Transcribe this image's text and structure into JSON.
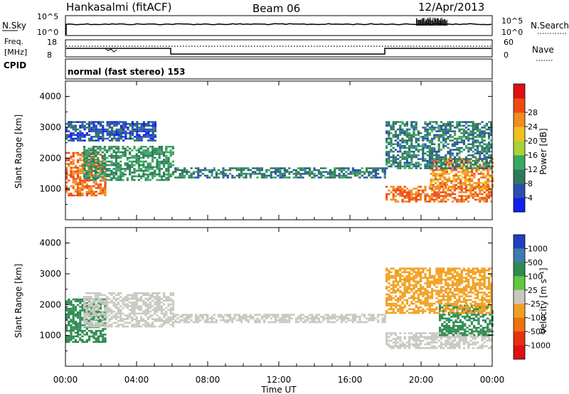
{
  "header": {
    "station": "Hankasalmi (fitACF)",
    "beam": "Beam 06",
    "date": "12/Apr/2013"
  },
  "top_panel": {
    "left_label": "N.Sky",
    "left_ticks": [
      "10^5",
      "10^0"
    ],
    "right_label": "N.Search",
    "right_ticks": [
      "10^5",
      "10^0"
    ]
  },
  "freq_panel": {
    "left_label_line1": "Freq.",
    "left_label_line2": "[MHz]",
    "left_ticks": [
      "18",
      "8"
    ],
    "right_label": "Nave",
    "right_ticks": [
      "60",
      "0"
    ],
    "cpid_label": "CPID"
  },
  "mode_text": "normal (fast stereo) 153",
  "colors": {
    "power": [
      "#1020f0",
      "#2a4fb0",
      "#2f7a5a",
      "#3aa860",
      "#a8d238",
      "#f0c020",
      "#f08c20",
      "#f04a14",
      "#e01010"
    ],
    "velocity": [
      "#2040c0",
      "#3c7cb0",
      "#2e8a50",
      "#60c840",
      "#c8c8c0",
      "#f0a020",
      "#f07010",
      "#e83010",
      "#e01010"
    ]
  },
  "chart_data": [
    {
      "type": "heatmap",
      "name": "power",
      "xlabel": "",
      "ylabel": "Slant Range [km]",
      "xlim": [
        "00:00",
        "24:00"
      ],
      "ylim": [
        0,
        4500
      ],
      "yticks": [
        "1000",
        "2000",
        "3000",
        "4000"
      ],
      "colorbar_label": "Power [dB]",
      "colorbar_ticks": [
        "4",
        "8",
        "12",
        "16",
        "20",
        "24",
        "28"
      ],
      "features": [
        {
          "desc": "strong band",
          "t_start": 0.0,
          "t_end": 2.3,
          "range_low": 800,
          "range_high": 2200,
          "value": 28
        },
        {
          "desc": "descending band",
          "t_start": 1.0,
          "t_end": 6.0,
          "range_low": 1300,
          "range_high": 2400,
          "value": 12
        },
        {
          "desc": "weak echoes",
          "t_start": 0.0,
          "t_end": 5.0,
          "range_low": 2600,
          "range_high": 3200,
          "value": 6
        },
        {
          "desc": "mid-range band",
          "t_start": 6.0,
          "t_end": 18.0,
          "range_low": 1400,
          "range_high": 1700,
          "value": 10
        },
        {
          "desc": "strong lower band",
          "t_start": 18.0,
          "t_end": 24.0,
          "range_low": 600,
          "range_high": 1100,
          "value": 28
        },
        {
          "desc": "strong upper band",
          "t_start": 20.5,
          "t_end": 24.0,
          "range_low": 1000,
          "range_high": 2000,
          "value": 26
        },
        {
          "desc": "scattered echoes",
          "t_start": 18.0,
          "t_end": 24.0,
          "range_low": 1700,
          "range_high": 3200,
          "value": 10
        }
      ]
    },
    {
      "type": "heatmap",
      "name": "velocity",
      "xlabel": "Time UT",
      "ylabel": "Slant Range [km]",
      "xlim": [
        "00:00",
        "24:00"
      ],
      "ylim": [
        0,
        4500
      ],
      "xticks": [
        "00:00",
        "04:00",
        "08:00",
        "12:00",
        "16:00",
        "20:00",
        "00:00"
      ],
      "yticks": [
        "1000",
        "2000",
        "3000",
        "4000"
      ],
      "colorbar_label": "Velocity [m s⁻¹]",
      "colorbar_ticks": [
        "1000",
        "500",
        "100",
        "25",
        "-25",
        "-100",
        "-500",
        "-1000"
      ],
      "features": [
        {
          "desc": "toward radar flow",
          "t_start": 0.0,
          "t_end": 2.3,
          "range_low": 800,
          "range_high": 2200,
          "value": 300
        },
        {
          "desc": "near-zero descending band",
          "t_start": 1.0,
          "t_end": 6.0,
          "range_low": 1300,
          "range_high": 2400,
          "value": 0
        },
        {
          "desc": "near-zero mid-range band",
          "t_start": 6.0,
          "t_end": 18.0,
          "range_low": 1400,
          "range_high": 1700,
          "value": 0
        },
        {
          "desc": "near-zero lower band",
          "t_start": 18.0,
          "t_end": 24.0,
          "range_low": 600,
          "range_high": 1100,
          "value": 0
        },
        {
          "desc": "mixed flow",
          "t_start": 21.0,
          "t_end": 24.0,
          "range_low": 1000,
          "range_high": 2000,
          "value": 150
        },
        {
          "desc": "scattered echoes",
          "t_start": 18.0,
          "t_end": 24.0,
          "range_low": 1700,
          "range_high": 3200,
          "value": -50
        }
      ]
    }
  ]
}
